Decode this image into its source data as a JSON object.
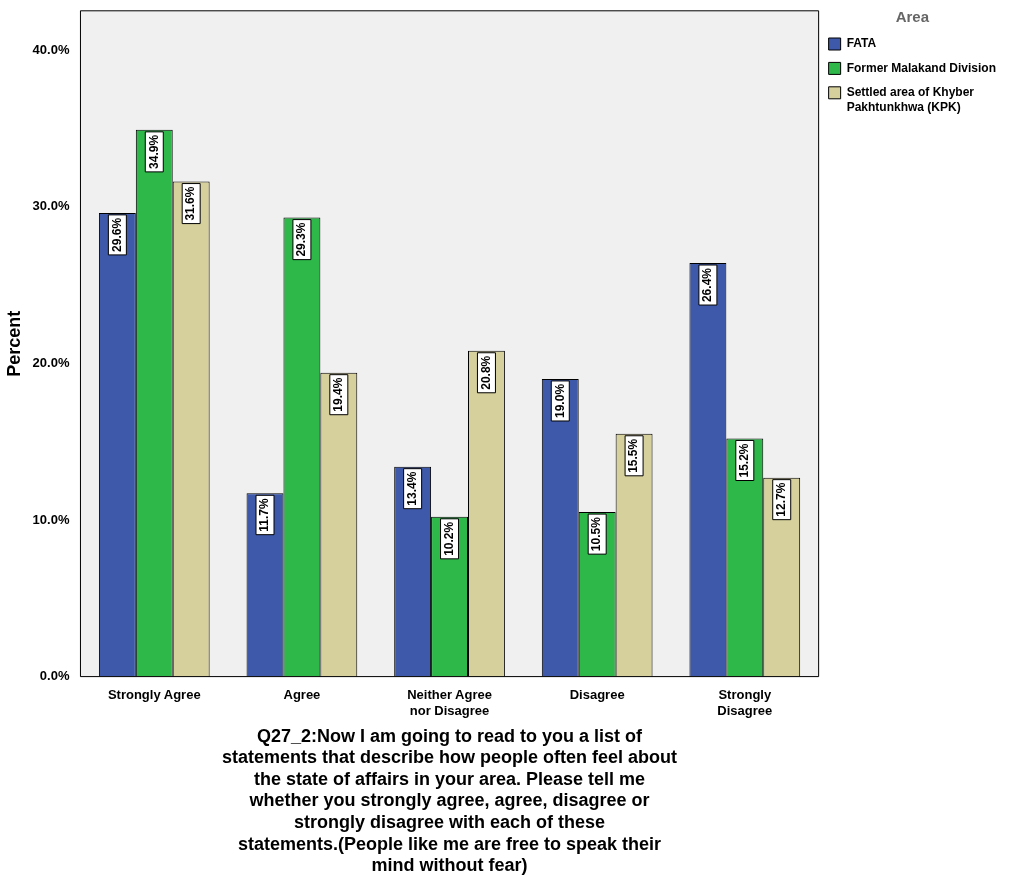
{
  "chart_data": {
    "type": "bar",
    "xlabel": "Q27_2:Now I am going to read to you a list of statements that describe how people often feel about the state of affairs in your area. Please tell me whether you strongly agree, agree, disagree or strongly disagree with each of these statements.(People like me are free to speak their mind without fear)",
    "ylabel": "Percent",
    "legend_title": "Area",
    "categories": [
      "Strongly Agree",
      "Agree",
      "Neither Agree nor Disagree",
      "Disagree",
      "Strongly Disagree"
    ],
    "series": [
      {
        "name": "FATA",
        "color": "#3e59aa",
        "values": [
          29.6,
          11.7,
          13.4,
          19.0,
          26.4
        ],
        "value_labels": [
          "29.6%",
          "11.7%",
          "13.4%",
          "19.0%",
          "26.4%"
        ]
      },
      {
        "name": "Former Malakand Division",
        "color": "#2eb84a",
        "values": [
          34.9,
          29.3,
          10.2,
          10.5,
          15.2
        ],
        "value_labels": [
          "34.9%",
          "29.3%",
          "10.2%",
          "10.5%",
          "15.2%"
        ]
      },
      {
        "name": "Settled area of Khyber Pakhtunkhwa (KPK)",
        "color": "#d6d09c",
        "values": [
          31.6,
          19.4,
          20.8,
          15.5,
          12.7
        ],
        "value_labels": [
          "31.6%",
          "19.4%",
          "20.8%",
          "15.5%",
          "12.7%"
        ]
      }
    ],
    "ylim": [
      0,
      42.5
    ],
    "yticks": [
      {
        "value": 0,
        "label": "0.0%"
      },
      {
        "value": 10,
        "label": "10.0%"
      },
      {
        "value": 20,
        "label": "20.0%"
      },
      {
        "value": 30,
        "label": "30.0%"
      },
      {
        "value": 40,
        "label": "40.0%"
      }
    ],
    "grid": false,
    "legend": "right"
  }
}
